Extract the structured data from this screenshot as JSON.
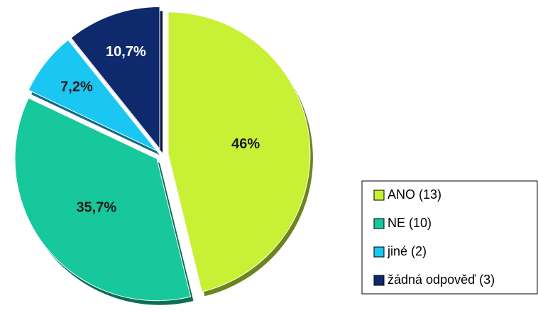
{
  "chart_data": {
    "type": "pie",
    "categories": [
      "ANO (13)",
      "NE (10)",
      "jiné (2)",
      "žádná odpověď (3)"
    ],
    "values": [
      46,
      35.7,
      7.2,
      10.7
    ],
    "value_labels": [
      "46%",
      "35,7%",
      "7,2%",
      "10,7%"
    ],
    "colors": [
      "#c8f035",
      "#16c89c",
      "#1ac6f2",
      "#0f2a6c"
    ],
    "legend": "right"
  }
}
